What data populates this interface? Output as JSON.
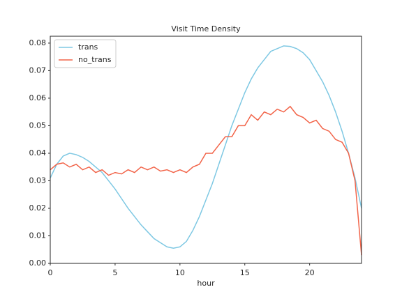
{
  "chart_data": {
    "type": "line",
    "title": "Visit Time Density",
    "xlabel": "hour",
    "x": [
      0,
      0.5,
      1,
      1.5,
      2,
      2.5,
      3,
      3.5,
      4,
      4.5,
      5,
      5.5,
      6,
      6.5,
      7,
      7.5,
      8,
      8.5,
      9,
      9.5,
      10,
      10.5,
      11,
      11.5,
      12,
      12.5,
      13,
      13.5,
      14,
      14.5,
      15,
      15.5,
      16,
      16.5,
      17,
      17.5,
      18,
      18.5,
      19,
      19.5,
      20,
      20.5,
      21,
      21.5,
      22,
      22.5,
      23,
      23.5,
      24
    ],
    "series": [
      {
        "name": "trans",
        "color": "#7ec8e3",
        "values": [
          0.031,
          0.036,
          0.039,
          0.04,
          0.0395,
          0.0385,
          0.037,
          0.035,
          0.033,
          0.03,
          0.027,
          0.0235,
          0.02,
          0.017,
          0.014,
          0.0115,
          0.009,
          0.0075,
          0.006,
          0.0055,
          0.006,
          0.008,
          0.012,
          0.017,
          0.023,
          0.029,
          0.036,
          0.043,
          0.05,
          0.056,
          0.062,
          0.067,
          0.071,
          0.074,
          0.077,
          0.078,
          0.079,
          0.0788,
          0.078,
          0.0765,
          0.074,
          0.07,
          0.066,
          0.061,
          0.055,
          0.048,
          0.04,
          0.031,
          0.02
        ]
      },
      {
        "name": "no_trans",
        "color": "#f26449",
        "values": [
          0.034,
          0.036,
          0.0365,
          0.035,
          0.036,
          0.034,
          0.035,
          0.033,
          0.034,
          0.032,
          0.033,
          0.0325,
          0.034,
          0.033,
          0.035,
          0.034,
          0.035,
          0.0335,
          0.034,
          0.033,
          0.034,
          0.033,
          0.035,
          0.036,
          0.04,
          0.04,
          0.043,
          0.046,
          0.046,
          0.05,
          0.05,
          0.054,
          0.052,
          0.055,
          0.054,
          0.056,
          0.055,
          0.057,
          0.054,
          0.053,
          0.051,
          0.052,
          0.049,
          0.048,
          0.045,
          0.044,
          0.04,
          0.03,
          0.003
        ]
      }
    ],
    "xlim": [
      0,
      24
    ],
    "xticks": [
      0,
      5,
      10,
      15,
      20
    ],
    "ylim": [
      0,
      0.0825
    ],
    "yticks": [
      {
        "value": 0,
        "label": "0.00"
      },
      {
        "value": 0.01,
        "label": "0.01"
      },
      {
        "value": 0.02,
        "label": "0.02"
      },
      {
        "value": 0.03,
        "label": "0.03"
      },
      {
        "value": 0.04,
        "label": "0.04"
      },
      {
        "value": 0.05,
        "label": "0.05"
      },
      {
        "value": 0.06,
        "label": "0.06"
      },
      {
        "value": 0.07,
        "label": "0.07"
      },
      {
        "value": 0.08,
        "label": "0.08"
      }
    ],
    "legend": "upper left",
    "grid": false
  }
}
